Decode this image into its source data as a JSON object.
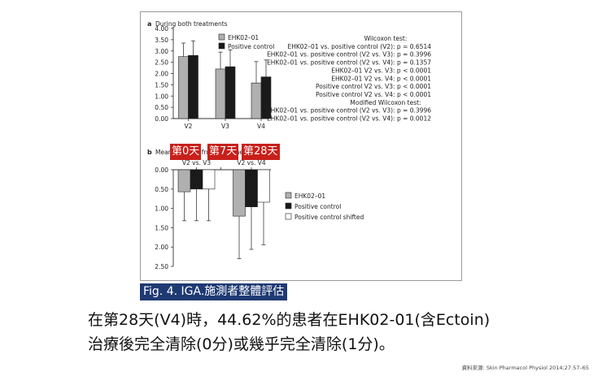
{
  "chart_data": [
    {
      "type": "bar",
      "panel_label": "a",
      "title": "During both treatments",
      "categories": [
        "V2",
        "V3",
        "V4"
      ],
      "series": [
        {
          "name": "EHK02–01",
          "color": "#b0b0b0",
          "values": [
            2.75,
            2.2,
            1.58
          ],
          "error": [
            0.6,
            0.75,
            0.95
          ]
        },
        {
          "name": "Positive control",
          "color": "#1a1a1a",
          "values": [
            2.8,
            2.3,
            1.85
          ],
          "error": [
            0.65,
            0.75,
            0.75
          ]
        }
      ],
      "ylim": [
        0,
        4.0
      ],
      "yticks": [
        "0.00",
        "0.50",
        "1.00",
        "1.50",
        "2.00",
        "2.50",
        "3.00",
        "3.50",
        "4.00"
      ],
      "legend_position": "top-right",
      "annotations": [
        "Wilcoxon test:",
        "EHK02–01 vs. positive control (V2): p = 0.6514",
        "EHK02–01 vs. positive control (V2 vs. V3): p = 0.3996",
        "EHK02–01 vs. positive control (V2 vs. V4): p = 0.1357",
        "EHK02–01 V2 vs. V3: p < 0.0001",
        "EHK02–01 V2 vs. V4: p < 0.0001",
        "Positive control V2 vs. V3: p < 0.0001",
        "Positive control V2 vs. V4: p < 0.0001",
        "Modified Wilcoxon test:",
        "EHK02–01 vs. positive control (V2 vs. V3): p = 0.3996",
        "EHK02–01 vs. positive control (V2 vs. V4): p = 0.0012"
      ]
    },
    {
      "type": "bar",
      "panel_label": "b",
      "title": "Mean changes from baseline visit",
      "categories": [
        "V2 vs. V3",
        "V2 vs. V4"
      ],
      "series": [
        {
          "name": "EHK02–01",
          "color": "#b0b0b0",
          "values": [
            0.57,
            1.2
          ],
          "error": [
            0.75,
            1.1
          ]
        },
        {
          "name": "Positive control",
          "color": "#1a1a1a",
          "values": [
            0.5,
            0.96
          ],
          "error": [
            0.82,
            1.1
          ]
        },
        {
          "name": "Positive control shifted",
          "color": "#ffffff",
          "values": [
            0.5,
            0.84
          ],
          "error": [
            0.82,
            1.1
          ]
        }
      ],
      "ylim": [
        0,
        2.5
      ],
      "y_inverted": true,
      "yticks": [
        "0.00",
        "0.50",
        "1.00",
        "1.50",
        "2.00",
        "2.50"
      ],
      "legend_position": "right"
    }
  ],
  "day_badges": [
    "第0天",
    "第7天",
    "第28天"
  ],
  "caption": "Fig. 4. IGA.施測者整體評估",
  "body_text": [
    "在第28天(V4)時，44.62%的患者在EHK02-01(含Ectoin)",
    "治療後完全清除(0分)或幾乎完全清除(1分)。"
  ],
  "source": "資料來源: Skin Pharmacol Physiol 2014;27:57–65"
}
